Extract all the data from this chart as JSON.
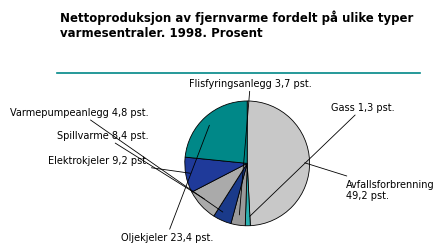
{
  "title_line1": "Nettoproduksjon av fjernvarme fordelt på ulike typer",
  "title_line2": "varmesentraler. 1998. Prosent",
  "slices": [
    {
      "label": "Avfallsforbrenning\n49,2 pst.",
      "value": 49.2,
      "color": "#c8c8c8"
    },
    {
      "label": "Gass 1,3 pst.",
      "value": 1.3,
      "color": "#2ab0b0"
    },
    {
      "label": "Flisfyringsanlegg 3,7 pst.",
      "value": 3.7,
      "color": "#9a9a9a"
    },
    {
      "label": "Varmepumpeanlegg 4,8 pst.",
      "value": 4.8,
      "color": "#1a3a8a"
    },
    {
      "label": "Spillvarme 8,4 pst.",
      "value": 8.4,
      "color": "#aaaaaa"
    },
    {
      "label": "Elektrokjeler 9,2 pst.",
      "value": 9.2,
      "color": "#1f3a9a"
    },
    {
      "label": "Oljekjeler 23,4 pst.",
      "value": 23.4,
      "color": "#008888"
    }
  ],
  "background_color": "#ffffff",
  "title_fontsize": 8.5,
  "label_fontsize": 7.0,
  "separator_color": "#008888"
}
